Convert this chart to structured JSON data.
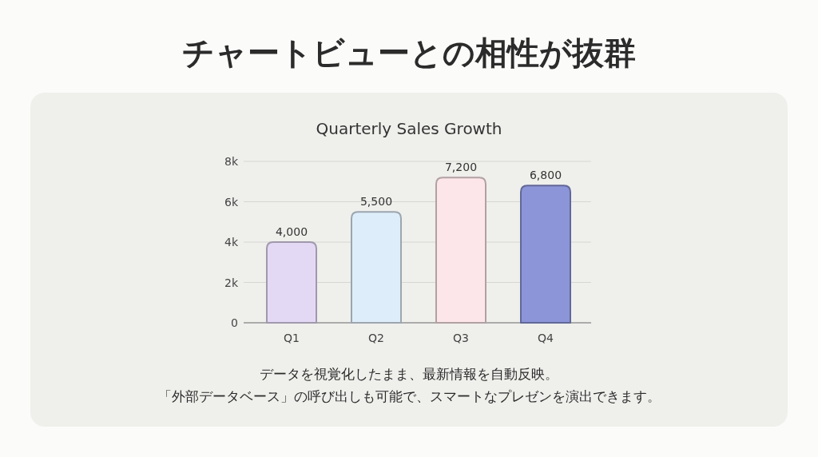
{
  "chart_data": {
    "type": "bar",
    "title": "チャートビューとの相性が抜群",
    "subtitle": "Quarterly Sales Growth",
    "categories": [
      "Q1",
      "Q2",
      "Q3",
      "Q4"
    ],
    "values": [
      4000,
      5500,
      7200,
      6800
    ],
    "colors": [
      "#e4d9f5",
      "#deedfa",
      "#fde6e9",
      "#8b95d8"
    ],
    "ylim": [
      0,
      8000
    ],
    "yticks": [
      0,
      {
        "value": 2000,
        "label": "2k"
      },
      {
        "value": 4000,
        "label": "4k"
      },
      {
        "value": 6000,
        "label": "6k"
      },
      {
        "value": 8000,
        "label": "8k"
      }
    ],
    "grid": "y",
    "value_labels": [
      "4,000",
      "5,500",
      "7,200",
      "6,800"
    ],
    "annotations": [
      "データを視覚化したまま、最新情報を自動反映。",
      "「外部データベース」の呼び出しも可能で、スマートなプレゼンを演出できます。"
    ]
  }
}
